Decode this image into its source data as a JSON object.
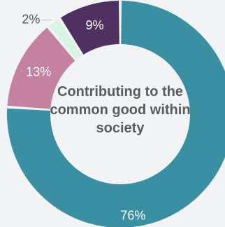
{
  "chart_data": {
    "type": "pie",
    "title": "Contributing to the common good within society",
    "slices": [
      {
        "label": "76%",
        "value": 76,
        "color": "#3a8fa3",
        "text_color": "#ffffff"
      },
      {
        "label": "13%",
        "value": 13,
        "color": "#c4829f",
        "text_color": "#ffffff"
      },
      {
        "label": "2%",
        "value": 2,
        "color": "#d9f3e3",
        "text_color": "#555555"
      },
      {
        "label": "9%",
        "value": 9,
        "color": "#4e3160",
        "text_color": "#ffffff"
      }
    ]
  }
}
